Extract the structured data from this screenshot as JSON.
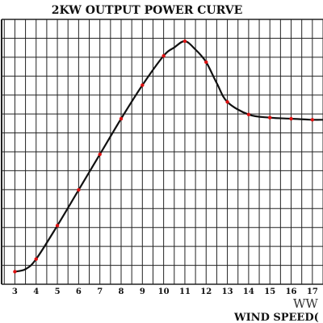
{
  "chart_data": {
    "type": "line",
    "title": "2KW OUTPUT POWER CURVE",
    "xlabel": "WIND SPEED(",
    "ylabel": "",
    "x": [
      3,
      3.5,
      4,
      5,
      6,
      7,
      8,
      9,
      10,
      10.5,
      11,
      11.5,
      12,
      12.5,
      13,
      14,
      15,
      16,
      17,
      17.5
    ],
    "y": [
      0,
      0.12,
      0.6,
      2.2,
      3.9,
      5.6,
      7.3,
      8.9,
      10.3,
      10.7,
      11.0,
      10.6,
      10.0,
      9.0,
      8.1,
      7.5,
      7.35,
      7.3,
      7.25,
      7.25
    ],
    "markers_x": [
      3,
      4,
      5,
      6,
      7,
      8,
      9,
      10,
      11,
      12,
      13,
      14,
      15,
      16,
      17
    ],
    "marker_color": "#dd1111",
    "line_color": "#111111",
    "x_ticks": [
      "3",
      "4",
      "5",
      "6",
      "7",
      "8",
      "9",
      "10",
      "11",
      "12",
      "13",
      "14",
      "15",
      "16",
      "17"
    ],
    "xlim": [
      2.3,
      17.5
    ],
    "ylim": [
      -0.6,
      11.0
    ],
    "grid": true,
    "y_tick_labels": false
  },
  "watermark": "WW"
}
